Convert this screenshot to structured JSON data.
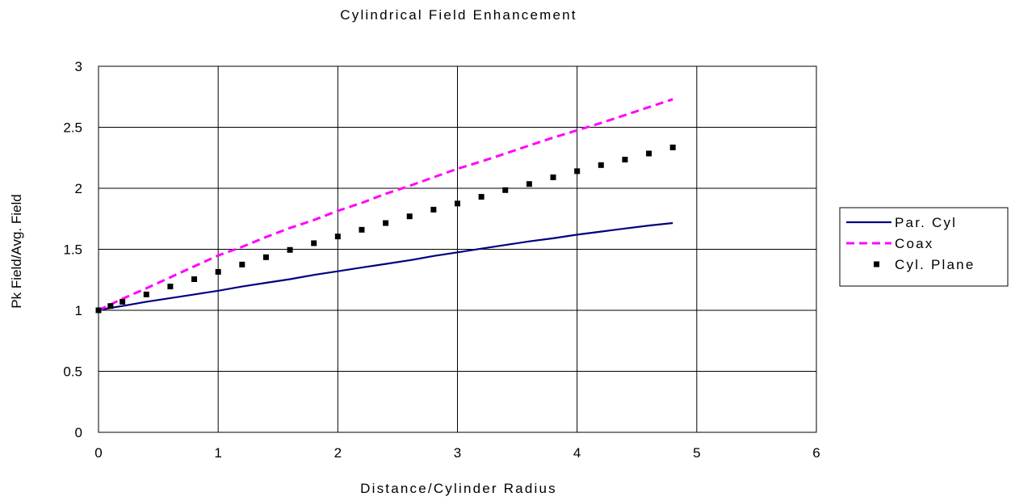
{
  "chart_data": {
    "type": "line",
    "title": "Cylindrical Field Enhancement",
    "xlabel": "Distance/Cylinder Radius",
    "ylabel": "Pk Field/Avg. Field",
    "xlim": [
      0,
      6
    ],
    "ylim": [
      0,
      3
    ],
    "xticks": [
      "0",
      "1",
      "2",
      "3",
      "4",
      "5",
      "6"
    ],
    "yticks": [
      "0",
      "0.5",
      "1",
      "1.5",
      "2",
      "2.5",
      "3"
    ],
    "grid": true,
    "legend_position": "right",
    "series": [
      {
        "name": "Par. Cyl",
        "style": "solid",
        "color": "#000080",
        "x": [
          0,
          0.1,
          0.2,
          0.4,
          0.6,
          0.8,
          1.0,
          1.2,
          1.4,
          1.6,
          1.8,
          2.0,
          2.2,
          2.4,
          2.6,
          2.8,
          3.0,
          3.2,
          3.4,
          3.6,
          3.8,
          4.0,
          4.2,
          4.4,
          4.6,
          4.8
        ],
        "y": [
          1.0,
          1.02,
          1.035,
          1.07,
          1.1,
          1.13,
          1.16,
          1.195,
          1.225,
          1.255,
          1.29,
          1.32,
          1.35,
          1.38,
          1.41,
          1.445,
          1.475,
          1.505,
          1.535,
          1.565,
          1.59,
          1.62,
          1.645,
          1.67,
          1.695,
          1.715
        ]
      },
      {
        "name": "Coax",
        "style": "dashed",
        "color": "#ff00ff",
        "x": [
          0,
          0.2,
          0.4,
          0.6,
          0.8,
          1.0,
          1.2,
          1.4,
          1.6,
          1.8,
          2.0,
          2.2,
          2.4,
          2.6,
          2.8,
          3.0,
          3.2,
          3.4,
          3.6,
          3.8,
          4.0,
          4.2,
          4.4,
          4.6,
          4.8
        ],
        "y": [
          1.0,
          1.095,
          1.18,
          1.27,
          1.36,
          1.45,
          1.52,
          1.6,
          1.675,
          1.74,
          1.815,
          1.88,
          1.955,
          2.02,
          2.09,
          2.16,
          2.22,
          2.285,
          2.35,
          2.415,
          2.475,
          2.535,
          2.6,
          2.665,
          2.73
        ]
      },
      {
        "name": "Cyl. Plane",
        "style": "markers",
        "color": "#000000",
        "x": [
          0,
          0.1,
          0.2,
          0.4,
          0.6,
          0.8,
          1.0,
          1.2,
          1.4,
          1.6,
          1.8,
          2.0,
          2.2,
          2.4,
          2.6,
          2.8,
          3.0,
          3.2,
          3.4,
          3.6,
          3.8,
          4.0,
          4.2,
          4.4,
          4.6,
          4.8
        ],
        "y": [
          1.0,
          1.035,
          1.07,
          1.13,
          1.195,
          1.255,
          1.315,
          1.375,
          1.435,
          1.495,
          1.55,
          1.605,
          1.66,
          1.715,
          1.77,
          1.825,
          1.875,
          1.93,
          1.985,
          2.035,
          2.09,
          2.14,
          2.19,
          2.235,
          2.285,
          2.335
        ]
      }
    ]
  }
}
